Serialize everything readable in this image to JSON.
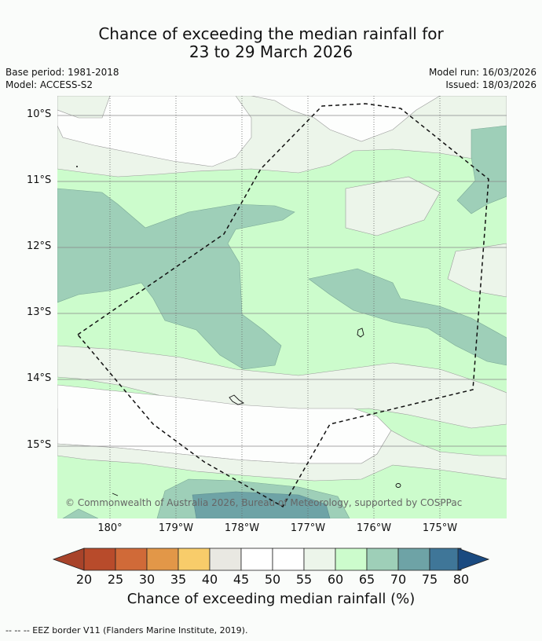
{
  "title": {
    "line1": "Chance of exceeding the median rainfall for",
    "line2": "23 to 29 March 2026"
  },
  "meta": {
    "base_period": "Base period: 1981-2018",
    "model": "Model: ACCESS-S2",
    "model_run": "Model run: 16/03/2026",
    "issued": "Issued: 18/03/2026"
  },
  "axes": {
    "lat_labels": [
      "10°S",
      "11°S",
      "12°S",
      "13°S",
      "14°S",
      "15°S"
    ],
    "lon_labels": [
      "180°",
      "179°W",
      "178°W",
      "177°W",
      "176°W",
      "175°W"
    ]
  },
  "copyright": "© Commonwealth of Australia 2026, Bureau of Meteorology, supported by COSPPac",
  "colorbar": {
    "title": "Chance of exceeding median rainfall (%)",
    "ticks": [
      "20",
      "25",
      "30",
      "35",
      "40",
      "45",
      "50",
      "55",
      "60",
      "65",
      "70",
      "75",
      "80"
    ],
    "colors": {
      "below": "#a8432a",
      "bins": [
        "#b84b2b",
        "#d06a38",
        "#e29748",
        "#f8cc6a",
        "#e9e8e2",
        "#ffffff",
        "#ffffff",
        "#ecf5ea",
        "#ccfccc",
        "#9ecfb8",
        "#6ea3a6",
        "#3f7698"
      ],
      "above": "#1a4a80"
    }
  },
  "footer": "--  --  -- EEZ border V11 (Flanders Marine Institute, 2019)."
}
